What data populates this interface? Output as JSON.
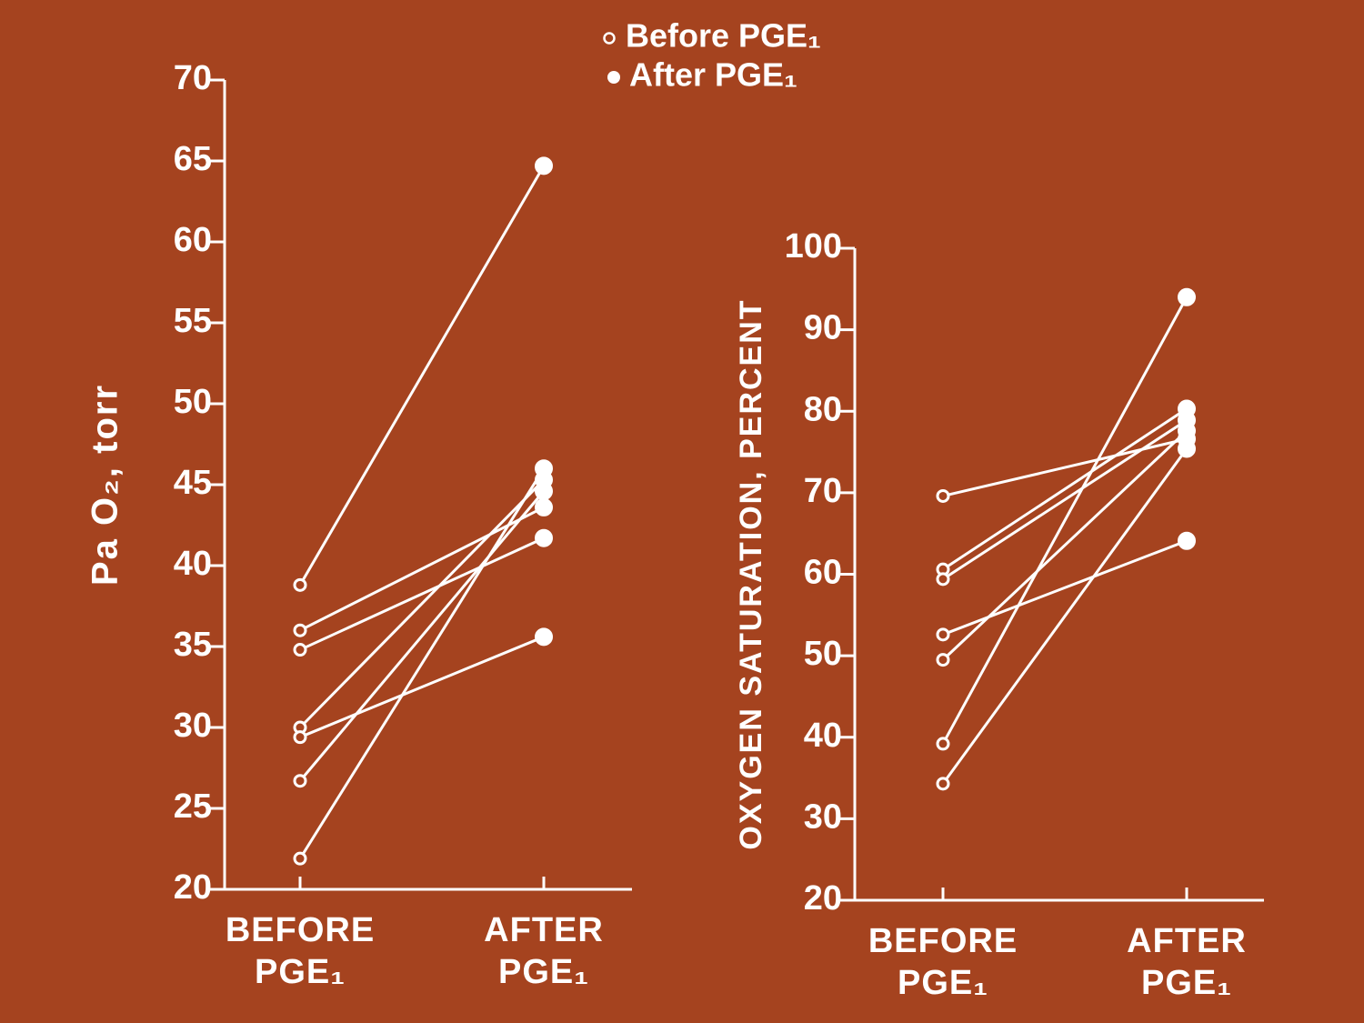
{
  "legend": [
    "Before PGE₁",
    "After PGE₁"
  ],
  "chart_data": [
    {
      "type": "line",
      "ylabel": "Pa O₂, torr",
      "categories": [
        "BEFORE PGE₁",
        "AFTER PGE₁"
      ],
      "markers": [
        "open",
        "filled"
      ],
      "color": "#ffffff",
      "ylim": [
        20,
        70
      ],
      "yticks": [
        20,
        25,
        30,
        35,
        40,
        45,
        50,
        55,
        60,
        65,
        70
      ],
      "series": [
        {
          "values": [
            38.8,
            64.7
          ]
        },
        {
          "values": [
            36.0,
            43.6
          ]
        },
        {
          "values": [
            34.8,
            41.7
          ]
        },
        {
          "values": [
            30.0,
            45.3
          ]
        },
        {
          "values": [
            29.4,
            35.6
          ]
        },
        {
          "values": [
            26.7,
            44.6
          ]
        },
        {
          "values": [
            21.9,
            46.0
          ]
        }
      ]
    },
    {
      "type": "line",
      "ylabel": "OXYGEN SATURATION, PERCENT",
      "categories": [
        "BEFORE PGE₁",
        "AFTER PGE₁"
      ],
      "markers": [
        "open",
        "filled"
      ],
      "color": "#ffffff",
      "ylim": [
        20,
        100
      ],
      "yticks": [
        20,
        30,
        40,
        50,
        60,
        70,
        80,
        90,
        100
      ],
      "series": [
        {
          "values": [
            69.6,
            76.6
          ]
        },
        {
          "values": [
            60.6,
            80.3
          ]
        },
        {
          "values": [
            59.4,
            78.9
          ]
        },
        {
          "values": [
            52.6,
            64.1
          ]
        },
        {
          "values": [
            49.5,
            77.6
          ]
        },
        {
          "values": [
            39.2,
            94.0
          ]
        },
        {
          "values": [
            34.3,
            75.4
          ]
        }
      ]
    }
  ]
}
